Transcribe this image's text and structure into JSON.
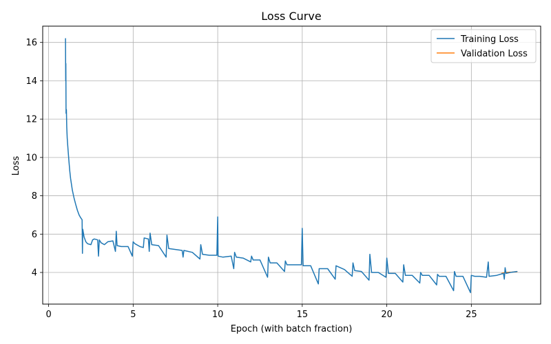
{
  "chart_data": {
    "type": "line",
    "title": "Loss Curve",
    "xlabel": "Epoch (with batch fraction)",
    "ylabel": "Loss",
    "xlim": [
      -0.35,
      29.1
    ],
    "ylim": [
      2.35,
      16.85
    ],
    "xticks": [
      0,
      5,
      10,
      15,
      20,
      25
    ],
    "yticks": [
      4,
      6,
      8,
      10,
      12,
      14,
      16
    ],
    "grid": true,
    "legend_position": "top-right",
    "colors": {
      "training": "#1f77b4",
      "validation": "#ff7f0e"
    },
    "series": [
      {
        "name": "Training Loss",
        "points": [
          [
            1.0,
            16.2
          ],
          [
            1.01,
            14.0
          ],
          [
            1.02,
            14.9
          ],
          [
            1.03,
            12.3
          ],
          [
            1.05,
            12.5
          ],
          [
            1.07,
            11.6
          ],
          [
            1.1,
            11.0
          ],
          [
            1.15,
            10.4
          ],
          [
            1.2,
            9.8
          ],
          [
            1.25,
            9.3
          ],
          [
            1.3,
            8.9
          ],
          [
            1.4,
            8.3
          ],
          [
            1.5,
            7.9
          ],
          [
            1.6,
            7.55
          ],
          [
            1.7,
            7.25
          ],
          [
            1.8,
            7.0
          ],
          [
            1.9,
            6.85
          ],
          [
            1.98,
            6.75
          ],
          [
            2.0,
            5.0
          ],
          [
            2.02,
            6.25
          ],
          [
            2.05,
            6.1
          ],
          [
            2.1,
            5.85
          ],
          [
            2.2,
            5.6
          ],
          [
            2.3,
            5.5
          ],
          [
            2.5,
            5.45
          ],
          [
            2.6,
            5.7
          ],
          [
            2.7,
            5.75
          ],
          [
            2.9,
            5.7
          ],
          [
            2.95,
            4.85
          ],
          [
            3.0,
            5.7
          ],
          [
            3.1,
            5.55
          ],
          [
            3.3,
            5.45
          ],
          [
            3.5,
            5.6
          ],
          [
            3.8,
            5.65
          ],
          [
            3.95,
            5.1
          ],
          [
            4.0,
            6.15
          ],
          [
            4.05,
            5.4
          ],
          [
            4.3,
            5.35
          ],
          [
            4.7,
            5.35
          ],
          [
            4.95,
            4.85
          ],
          [
            5.0,
            5.6
          ],
          [
            5.1,
            5.5
          ],
          [
            5.4,
            5.35
          ],
          [
            5.6,
            5.3
          ],
          [
            5.65,
            5.8
          ],
          [
            5.9,
            5.75
          ],
          [
            5.95,
            5.1
          ],
          [
            6.0,
            6.05
          ],
          [
            6.1,
            5.45
          ],
          [
            6.5,
            5.4
          ],
          [
            6.95,
            4.8
          ],
          [
            7.0,
            5.95
          ],
          [
            7.1,
            5.25
          ],
          [
            7.5,
            5.2
          ],
          [
            7.9,
            5.15
          ],
          [
            7.95,
            4.8
          ],
          [
            8.0,
            5.15
          ],
          [
            8.5,
            5.05
          ],
          [
            8.95,
            4.7
          ],
          [
            9.0,
            5.45
          ],
          [
            9.1,
            4.95
          ],
          [
            9.5,
            4.9
          ],
          [
            9.95,
            4.9
          ],
          [
            10.0,
            6.9
          ],
          [
            10.02,
            4.85
          ],
          [
            10.3,
            4.8
          ],
          [
            10.8,
            4.85
          ],
          [
            10.95,
            4.2
          ],
          [
            11.0,
            5.05
          ],
          [
            11.1,
            4.8
          ],
          [
            11.5,
            4.75
          ],
          [
            11.95,
            4.55
          ],
          [
            12.0,
            4.85
          ],
          [
            12.1,
            4.65
          ],
          [
            12.5,
            4.65
          ],
          [
            12.95,
            3.75
          ],
          [
            13.0,
            4.8
          ],
          [
            13.1,
            4.5
          ],
          [
            13.5,
            4.5
          ],
          [
            13.95,
            4.05
          ],
          [
            14.0,
            4.6
          ],
          [
            14.1,
            4.4
          ],
          [
            14.5,
            4.4
          ],
          [
            14.95,
            4.4
          ],
          [
            15.0,
            6.3
          ],
          [
            15.05,
            4.35
          ],
          [
            15.5,
            4.35
          ],
          [
            15.95,
            3.4
          ],
          [
            16.0,
            4.2
          ],
          [
            16.5,
            4.2
          ],
          [
            16.95,
            3.65
          ],
          [
            17.0,
            4.35
          ],
          [
            17.5,
            4.15
          ],
          [
            17.95,
            3.8
          ],
          [
            18.0,
            4.5
          ],
          [
            18.1,
            4.1
          ],
          [
            18.5,
            4.05
          ],
          [
            18.95,
            3.6
          ],
          [
            19.0,
            4.95
          ],
          [
            19.1,
            4.0
          ],
          [
            19.5,
            4.0
          ],
          [
            19.95,
            3.75
          ],
          [
            20.0,
            4.75
          ],
          [
            20.1,
            3.95
          ],
          [
            20.5,
            3.95
          ],
          [
            20.95,
            3.5
          ],
          [
            21.0,
            4.4
          ],
          [
            21.1,
            3.85
          ],
          [
            21.5,
            3.85
          ],
          [
            21.95,
            3.45
          ],
          [
            22.0,
            4.0
          ],
          [
            22.1,
            3.85
          ],
          [
            22.5,
            3.85
          ],
          [
            22.95,
            3.35
          ],
          [
            23.0,
            3.9
          ],
          [
            23.1,
            3.8
          ],
          [
            23.5,
            3.8
          ],
          [
            23.95,
            3.05
          ],
          [
            24.0,
            4.05
          ],
          [
            24.1,
            3.8
          ],
          [
            24.5,
            3.8
          ],
          [
            24.95,
            2.95
          ],
          [
            25.0,
            3.85
          ],
          [
            25.2,
            3.8
          ],
          [
            25.5,
            3.8
          ],
          [
            25.9,
            3.75
          ],
          [
            26.0,
            4.55
          ],
          [
            26.05,
            3.8
          ],
          [
            26.5,
            3.85
          ],
          [
            26.9,
            3.95
          ],
          [
            26.95,
            3.65
          ],
          [
            27.0,
            4.25
          ],
          [
            27.05,
            3.95
          ],
          [
            27.3,
            4.0
          ],
          [
            27.7,
            4.05
          ]
        ]
      },
      {
        "name": "Validation Loss",
        "points": [
          [
            26.8,
            3.95
          ],
          [
            27.0,
            4.0
          ],
          [
            27.4,
            4.02
          ],
          [
            27.7,
            4.04
          ]
        ]
      }
    ]
  }
}
